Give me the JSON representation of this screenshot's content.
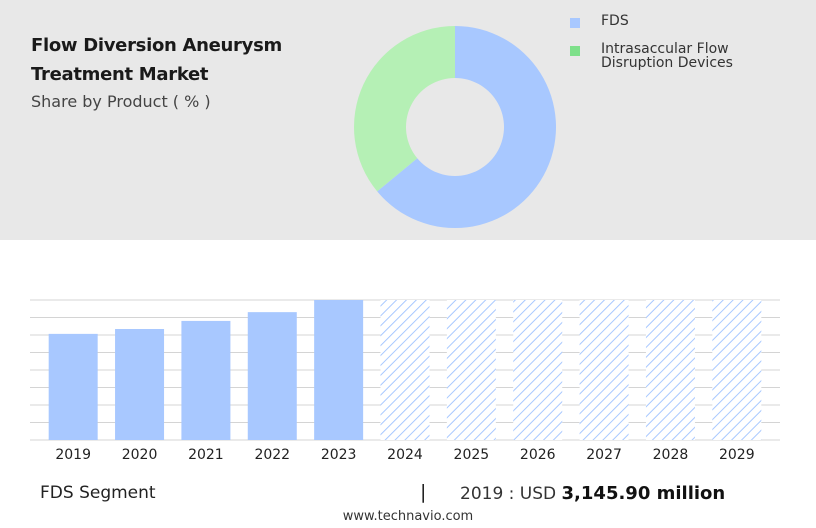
{
  "header": {
    "title": "Flow Diversion Aneurysm Treatment Market",
    "subtitle": "Share by Product ( % )"
  },
  "chart_data": [
    {
      "type": "pie",
      "donut": true,
      "labels": [
        "FDS",
        "Intrasaccular Flow Disruption Devices"
      ],
      "values": [
        64,
        36
      ],
      "colors": [
        "#a8c8ff",
        "#b5f0b5"
      ],
      "legend": [
        {
          "label": "FDS",
          "color": "#a8c8ff"
        },
        {
          "label": "Intrasaccular Flow Disruption Devices",
          "color": "#7ee08a"
        }
      ],
      "legend_position": "right"
    },
    {
      "type": "bar",
      "categories": [
        "2019",
        "2020",
        "2021",
        "2022",
        "2023",
        "2024",
        "2025",
        "2026",
        "2027",
        "2028",
        "2029"
      ],
      "values": [
        3145.9,
        3290,
        3530,
        3790,
        4150,
        null,
        null,
        null,
        null,
        null,
        null
      ],
      "forecast": [
        false,
        false,
        false,
        false,
        false,
        true,
        true,
        true,
        true,
        true,
        true
      ],
      "ylim": [
        0,
        4150
      ],
      "grid": true,
      "bar_color": "#a8c8ff",
      "forecast_pattern": "diagonal-hatch",
      "forecast_color": "#a8c8ff"
    }
  ],
  "footer": {
    "segment_label": "FDS Segment",
    "separator": "|",
    "year_label": "2019 : USD",
    "value_label": "3,145.90 million",
    "website": "www.technavio.com"
  }
}
